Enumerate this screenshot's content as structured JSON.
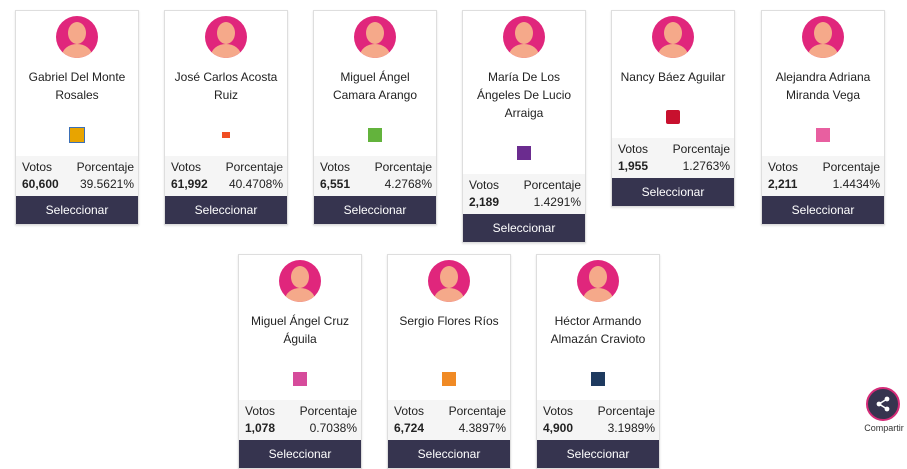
{
  "labels": {
    "votos": "Votos",
    "porcentaje": "Porcentaje",
    "button": "Seleccionar",
    "share": "Compartir"
  },
  "candidates": [
    {
      "name": "Gabriel Del Monte Rosales",
      "votes": "60,600",
      "pct": "39.5621%",
      "logo_color": "#e8a400"
    },
    {
      "name": "José Carlos Acosta Ruiz",
      "votes": "61,992",
      "pct": "40.4708%",
      "logo_color": "#f04e23"
    },
    {
      "name": "Miguel Ángel Camara Arango",
      "votes": "6,551",
      "pct": "4.2768%",
      "logo_color": "#63b33c"
    },
    {
      "name": "María De Los Ángeles De Lucio Arraiga",
      "votes": "2,189",
      "pct": "1.4291%",
      "logo_color": "#6b2c8f"
    },
    {
      "name": "Nancy Báez Aguilar",
      "votes": "1,955",
      "pct": "1.2763%",
      "logo_color": "#c8102e"
    },
    {
      "name": "Alejandra Adriana Miranda Vega",
      "votes": "2,211",
      "pct": "1.4434%",
      "logo_color": "#e85fa0"
    },
    {
      "name": "Miguel Ángel Cruz Águila",
      "votes": "1,078",
      "pct": "0.7038%",
      "logo_color": "#d64b9b"
    },
    {
      "name": "Sergio Flores Ríos",
      "votes": "6,724",
      "pct": "4.3897%",
      "logo_color": "#f08a24"
    },
    {
      "name": "Héctor Armando Almazán Cravioto",
      "votes": "4,900",
      "pct": "3.1989%",
      "logo_color": "#1e3a5f"
    }
  ]
}
